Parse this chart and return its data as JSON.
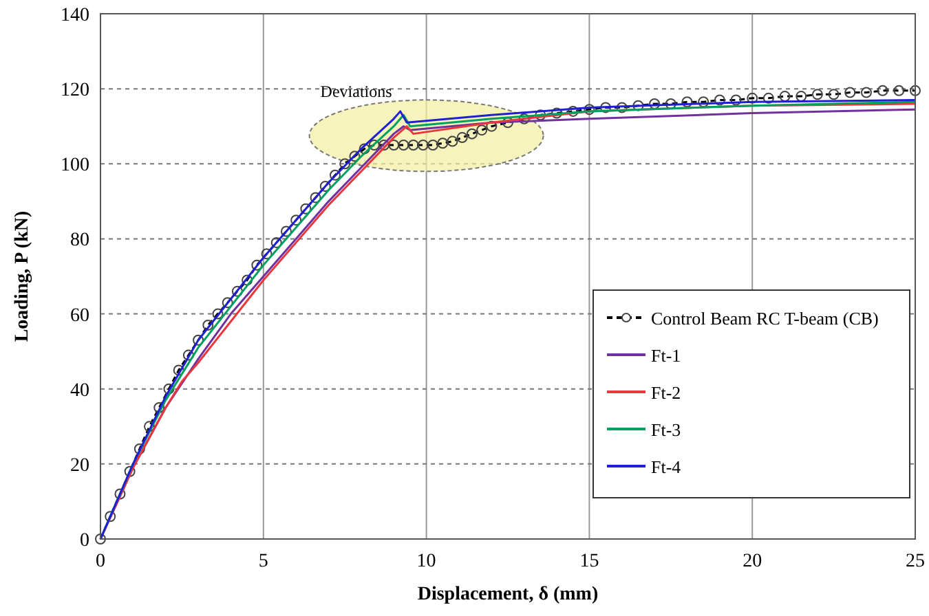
{
  "chart_data": {
    "type": "line",
    "xlabel": "Displacement, δ (mm)",
    "ylabel": "Loading, P (kN)",
    "xlim": [
      0,
      25
    ],
    "xticks": [
      0,
      5,
      10,
      15,
      20,
      25
    ],
    "ylim": [
      0,
      140
    ],
    "yticks": [
      0,
      20,
      40,
      60,
      80,
      100,
      120,
      140
    ],
    "grid": true,
    "legend": "right",
    "annotations": [
      {
        "text": "Deviations",
        "x": 10,
        "y": 107.5
      }
    ],
    "series": [
      {
        "name": "Control Beam RC T-beam (CB)",
        "color": "#000000",
        "marker": "circle",
        "line_style": "dashed",
        "x": [
          0,
          0.3,
          0.6,
          0.9,
          1.2,
          1.5,
          1.8,
          2.1,
          2.4,
          2.7,
          3,
          3.3,
          3.6,
          3.9,
          4.2,
          4.5,
          4.8,
          5.1,
          5.4,
          5.7,
          6,
          6.3,
          6.6,
          6.9,
          7.2,
          7.5,
          7.8,
          8.1,
          8.4,
          8.7,
          9,
          9.3,
          9.6,
          9.9,
          10.2,
          10.5,
          10.8,
          11.1,
          11.4,
          11.7,
          12,
          12.5,
          13,
          13.5,
          14,
          14.5,
          15,
          15.5,
          16,
          16.5,
          17,
          17.5,
          18,
          18.5,
          19,
          19.5,
          20,
          20.5,
          21,
          21.5,
          22,
          22.5,
          23,
          23.5,
          24,
          24.5,
          25
        ],
        "values": [
          0,
          6,
          12,
          18,
          24,
          30,
          35,
          40,
          45,
          49,
          53,
          57,
          60,
          63,
          66,
          69,
          73,
          76,
          79,
          82,
          85,
          88,
          91,
          94,
          97,
          100,
          102,
          104,
          105,
          105,
          105,
          105,
          105,
          105,
          105,
          105.5,
          106,
          107,
          108,
          109,
          110,
          111,
          112,
          113,
          113.5,
          114,
          114.5,
          115,
          115,
          115.5,
          116,
          116,
          116.5,
          116.5,
          117,
          117,
          117.5,
          117.5,
          118,
          118,
          118.5,
          118.5,
          119,
          119,
          119.5,
          119.5,
          119.5
        ]
      },
      {
        "name": "Ft-1",
        "color": "#7030a0",
        "x": [
          0,
          1,
          2,
          3,
          4,
          5,
          6,
          7,
          8,
          9,
          9.3,
          9.5,
          12,
          15,
          20,
          25
        ],
        "values": [
          0,
          19,
          35,
          48,
          60,
          70,
          80,
          90,
          99,
          108,
          110,
          109,
          111,
          112,
          113.5,
          114.5
        ]
      },
      {
        "name": "Ft-2",
        "color": "#e8383d",
        "x": [
          0,
          1,
          2,
          2.5,
          3,
          4,
          5,
          6,
          7,
          8,
          9,
          9.4,
          9.6,
          12,
          15,
          20,
          25
        ],
        "values": [
          0,
          19,
          35,
          42,
          47,
          58,
          69,
          79,
          89,
          98,
          107,
          110,
          108,
          111,
          114,
          115.5,
          116
        ]
      },
      {
        "name": "Ft-3",
        "color": "#00a060",
        "x": [
          0,
          1,
          2,
          3,
          4,
          5,
          6,
          7,
          8,
          9,
          9.3,
          9.5,
          12,
          15,
          20,
          25
        ],
        "values": [
          0,
          20,
          37,
          51,
          62,
          73,
          83,
          93,
          102,
          110,
          113,
          110,
          112,
          114,
          115.5,
          116.5
        ]
      },
      {
        "name": "Ft-4",
        "color": "#2020d0",
        "x": [
          0,
          1,
          2,
          3,
          4,
          5,
          6,
          7,
          8,
          9,
          9.2,
          9.4,
          12,
          15,
          20,
          25
        ],
        "values": [
          0,
          20,
          38,
          53,
          64,
          75,
          85,
          95,
          104,
          112,
          114,
          111,
          113,
          115,
          116.5,
          117
        ]
      }
    ]
  }
}
